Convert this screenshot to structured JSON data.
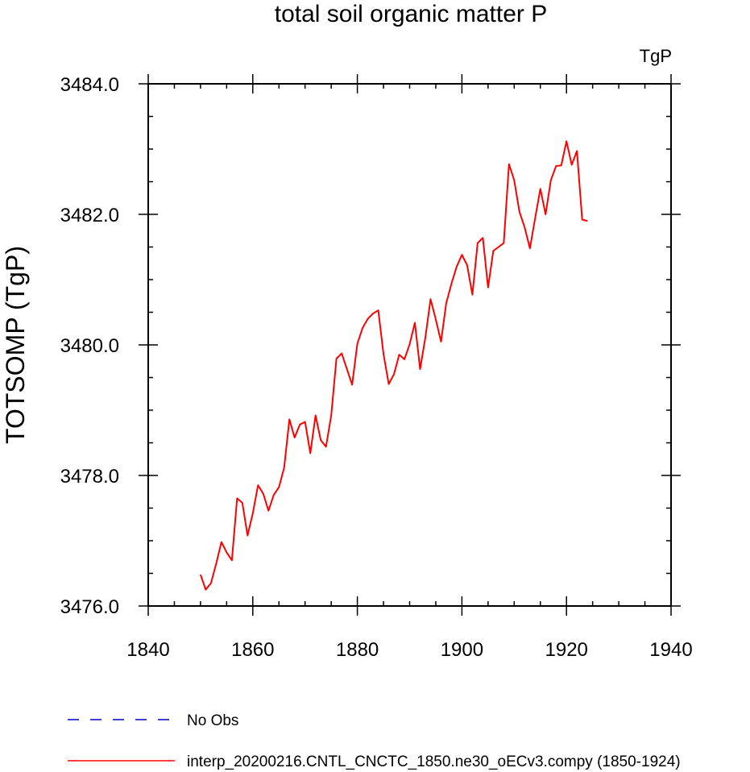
{
  "chart_data": {
    "type": "line",
    "title": "total soil organic matter P",
    "units_label": "TgP",
    "ylabel": "TOTSOMP  (TgP)",
    "xlabel": "",
    "xlim": [
      1840,
      1940
    ],
    "ylim": [
      3476.0,
      3484.0
    ],
    "x_ticks": [
      1840,
      1860,
      1880,
      1900,
      1920,
      1940
    ],
    "x_tick_labels": [
      "1840",
      "1860",
      "1880",
      "1900",
      "1920",
      "1940"
    ],
    "y_ticks": [
      3476.0,
      3478.0,
      3480.0,
      3482.0,
      3484.0
    ],
    "y_tick_labels": [
      "3476.0",
      "3478.0",
      "3480.0",
      "3482.0",
      "3484.0"
    ],
    "grid": false,
    "legend_placement": "bottom-left",
    "series": [
      {
        "name": "No Obs",
        "color": "#0000cc",
        "dash": "dashed",
        "x": [],
        "values": []
      },
      {
        "name": "interp_20200216.CNTL_CNCTC_1850.ne30_oECv3.compy (1850-1924)",
        "color": "#ff0000",
        "dash": "solid",
        "x": [
          1850,
          1851,
          1852,
          1853,
          1854,
          1855,
          1856,
          1857,
          1858,
          1859,
          1860,
          1861,
          1862,
          1863,
          1864,
          1865,
          1866,
          1867,
          1868,
          1869,
          1870,
          1871,
          1872,
          1873,
          1874,
          1875,
          1876,
          1877,
          1878,
          1879,
          1880,
          1881,
          1882,
          1883,
          1884,
          1885,
          1886,
          1887,
          1888,
          1889,
          1890,
          1891,
          1892,
          1893,
          1894,
          1895,
          1896,
          1897,
          1898,
          1899,
          1900,
          1901,
          1902,
          1903,
          1904,
          1905,
          1906,
          1907,
          1908,
          1909,
          1910,
          1911,
          1912,
          1913,
          1914,
          1915,
          1916,
          1917,
          1918,
          1919,
          1920,
          1921,
          1922,
          1923,
          1924
        ],
        "values": [
          3476.48,
          3476.25,
          3476.35,
          3476.65,
          3476.98,
          3476.82,
          3476.7,
          3477.65,
          3477.58,
          3477.08,
          3477.42,
          3477.85,
          3477.72,
          3477.46,
          3477.7,
          3477.82,
          3478.12,
          3478.86,
          3478.58,
          3478.78,
          3478.82,
          3478.34,
          3478.92,
          3478.54,
          3478.44,
          3478.92,
          3479.79,
          3479.87,
          3479.63,
          3479.39,
          3480.02,
          3480.26,
          3480.4,
          3480.48,
          3480.53,
          3479.86,
          3479.4,
          3479.55,
          3479.85,
          3479.78,
          3480.01,
          3480.34,
          3479.63,
          3480.11,
          3480.7,
          3480.39,
          3480.05,
          3480.64,
          3480.94,
          3481.2,
          3481.38,
          3481.22,
          3480.77,
          3481.56,
          3481.64,
          3480.88,
          3481.44,
          3481.5,
          3481.56,
          3482.77,
          3482.52,
          3482.04,
          3481.8,
          3481.48,
          3481.94,
          3482.39,
          3482.0,
          3482.52,
          3482.74,
          3482.75,
          3483.12,
          3482.76,
          3482.97,
          3481.92,
          3481.9
        ]
      }
    ]
  }
}
